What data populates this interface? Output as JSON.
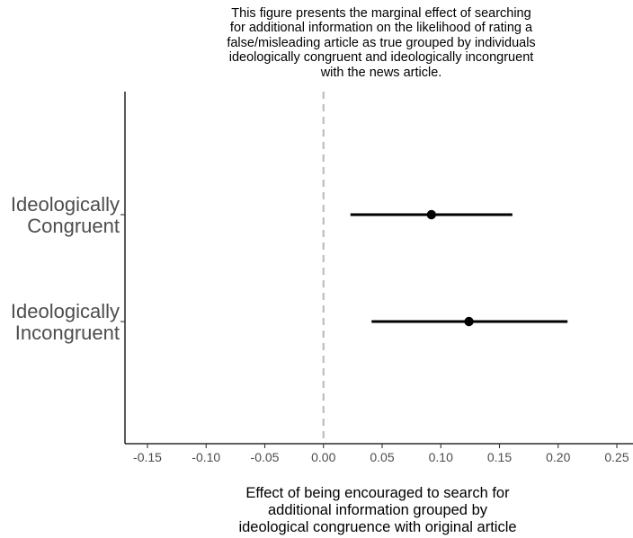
{
  "chart_data": {
    "type": "scatter",
    "title": "This figure presents the marginal effect of searching\nfor additional information on the likelihood of rating a\nfalse/misleading article as true grouped by individuals\nideologically congruent and ideologically incongruent\nwith the news article.",
    "xlabel": "Effect of being encouraged to search for\nadditional information grouped by\nideological congruence with original article",
    "ylabel": "",
    "xlim": [
      -0.17,
      0.255
    ],
    "x_ticks": [
      -0.15,
      -0.1,
      -0.05,
      0.0,
      0.05,
      0.1,
      0.15,
      0.2,
      0.25
    ],
    "x_tick_labels": [
      "-0.15",
      "-0.10",
      "-0.05",
      "0.00",
      "0.05",
      "0.10",
      "0.15",
      "0.20",
      "0.25"
    ],
    "reference_line": 0.0,
    "grid": false,
    "categories": [
      [
        "Ideologically",
        "Congruent"
      ],
      [
        "Ideologically",
        "Incongruent"
      ]
    ],
    "points": [
      {
        "estimate": 0.092,
        "ci_low": 0.023,
        "ci_high": 0.161
      },
      {
        "estimate": 0.124,
        "ci_low": 0.041,
        "ci_high": 0.208
      }
    ],
    "colors": {
      "point": "#000000",
      "reference_line": "#bdbdbd",
      "axis": "#000000",
      "category_text": "#4d4d4d"
    }
  }
}
